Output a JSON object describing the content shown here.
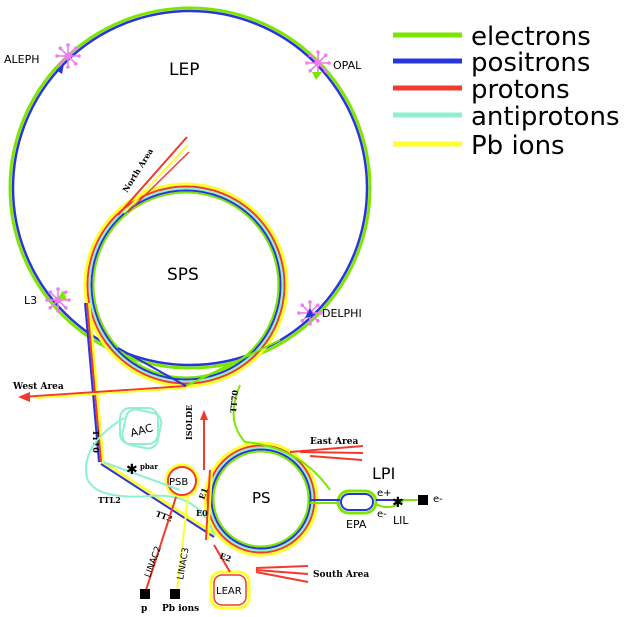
{
  "colors": {
    "electrons": "#7de600",
    "positrons": "#2a35d8",
    "protons": "#f23a2c",
    "antiprotons": "#8ff0d0",
    "pb_ions": "#ffff30",
    "detector": "#f07cf0"
  },
  "legend": [
    {
      "label": "electrons",
      "color_key": "electrons"
    },
    {
      "label": "positrons",
      "color_key": "positrons"
    },
    {
      "label": "protons",
      "color_key": "protons"
    },
    {
      "label": "antiprotons",
      "color_key": "antiprotons"
    },
    {
      "label": "Pb ions",
      "color_key": "pb_ions"
    }
  ],
  "rings": {
    "lep": "LEP",
    "sps": "SPS",
    "ps": "PS",
    "psb": "PSB",
    "aac": "AAC",
    "lear": "LEAR",
    "epa": "EPA",
    "lil": "LIL",
    "lpi": "LPI"
  },
  "detectors": {
    "aleph": "ALEPH",
    "opal": "OPAL",
    "l3": "L3",
    "delphi": "DELPHI"
  },
  "areas": {
    "north": "North Area",
    "west": "West Area",
    "east": "East Area",
    "south": "South Area",
    "isolde": "ISOLDE"
  },
  "lines": {
    "tt10": "TT10",
    "tt70": "TT70",
    "ttl2": "TTL2",
    "tt2": "TT2",
    "e0": "E0",
    "e1": "E1",
    "e2": "E2",
    "pbar": "pbar",
    "linac2": "LINAC2",
    "linac3": "LINAC3"
  },
  "sources": {
    "p": "p",
    "pb_ions": "Pb ions",
    "e_plus": "e+",
    "e_minus": "e-",
    "e_minus_right": "e-"
  }
}
